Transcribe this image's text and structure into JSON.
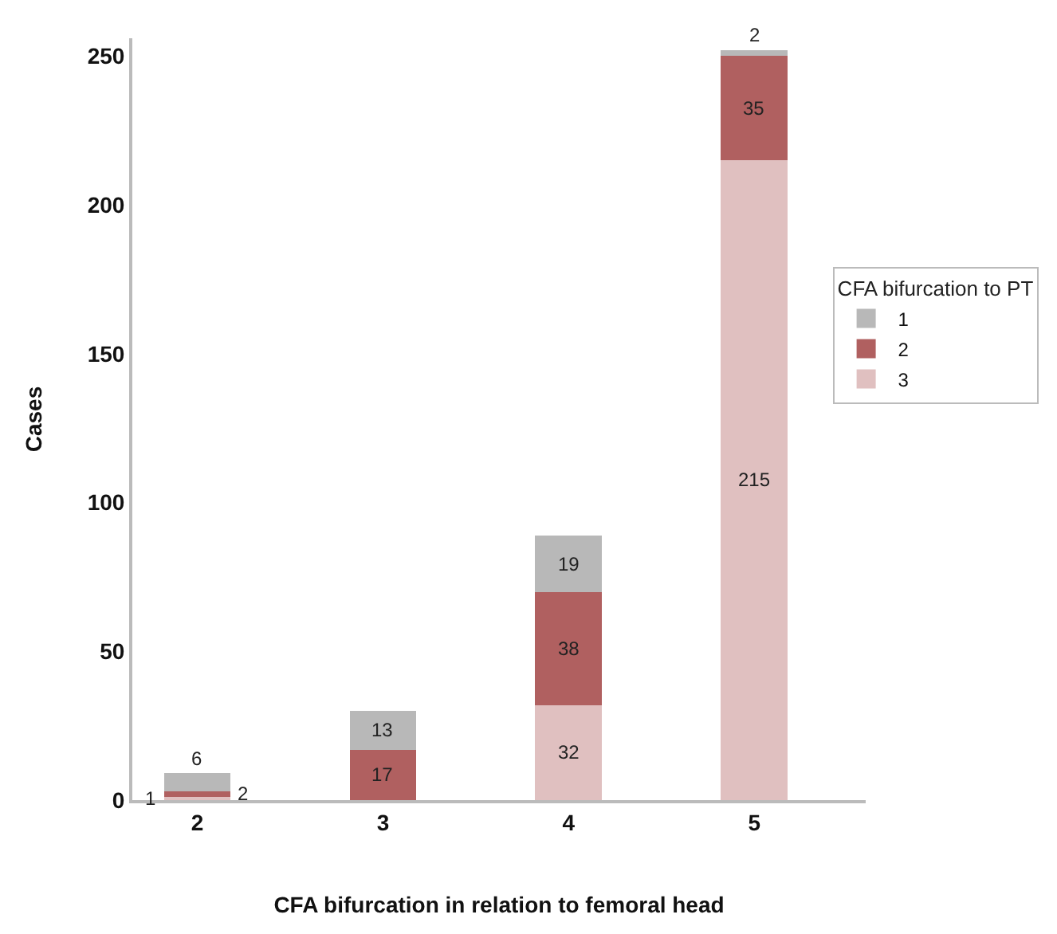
{
  "chart_data": {
    "type": "bar",
    "stacked": true,
    "data_labels": true,
    "xlabel": "CFA bifurcation in relation to femoral head",
    "ylabel": "Cases",
    "legend_title": "CFA bifurcation to PT",
    "categories": [
      "2",
      "3",
      "4",
      "5"
    ],
    "series": [
      {
        "name": "3",
        "color": "#e0c0c0",
        "values": [
          1,
          null,
          32,
          215
        ]
      },
      {
        "name": "2",
        "color": "#b06060",
        "values": [
          2,
          17,
          38,
          35
        ]
      },
      {
        "name": "1",
        "color": "#b8b8b8",
        "values": [
          6,
          13,
          19,
          2
        ]
      }
    ],
    "ylim": [
      0,
      256
    ],
    "yticks": [
      0,
      50,
      100,
      150,
      200,
      250
    ],
    "legend": "right"
  }
}
